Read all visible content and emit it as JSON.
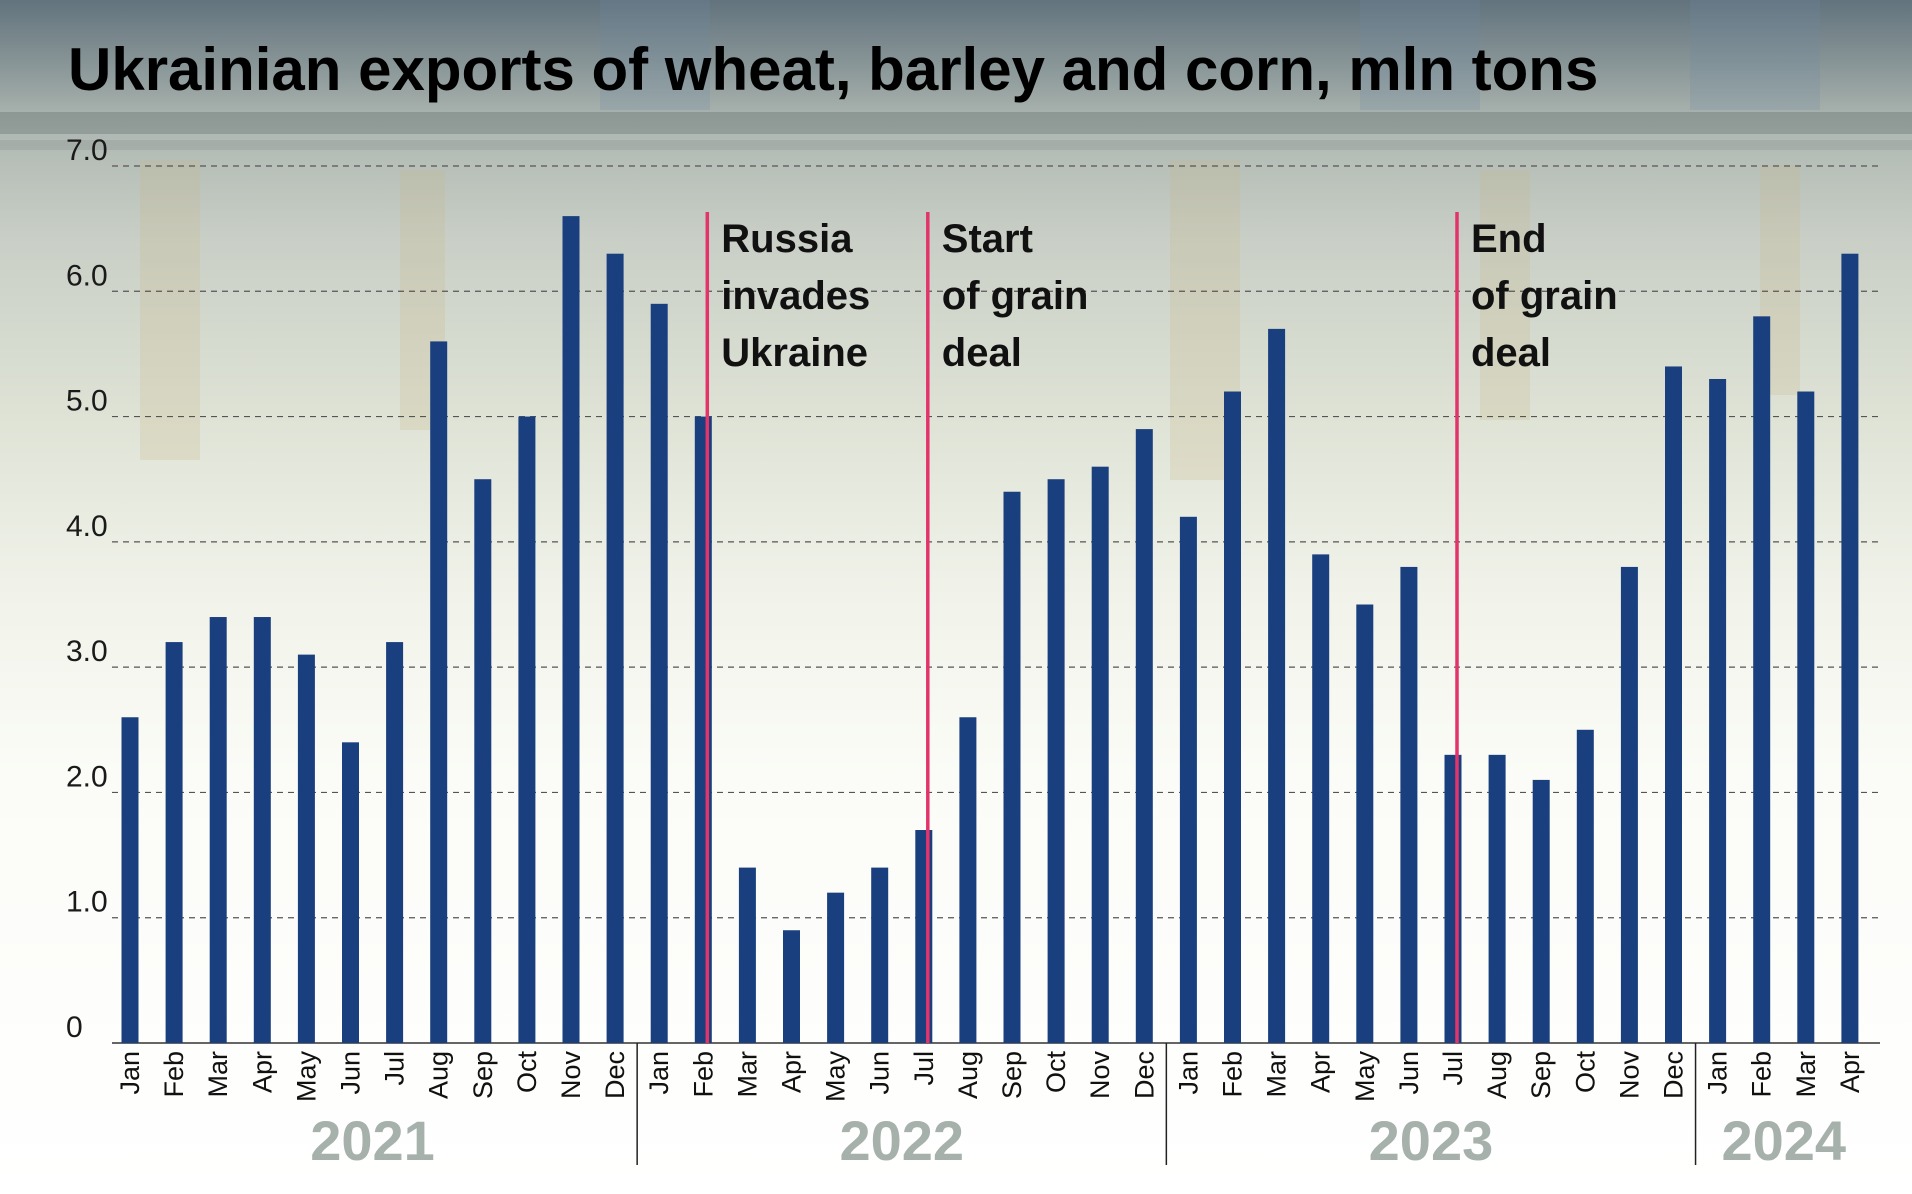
{
  "chart_data": {
    "type": "bar",
    "title": "Ukrainian exports of wheat, barley and corn, mln tons",
    "categories": [
      "Jan",
      "Feb",
      "Mar",
      "Apr",
      "May",
      "Jun",
      "Jul",
      "Aug",
      "Sep",
      "Oct",
      "Nov",
      "Dec",
      "Jan",
      "Feb",
      "Mar",
      "Apr",
      "May",
      "Jun",
      "Jul",
      "Aug",
      "Sep",
      "Oct",
      "Nov",
      "Dec",
      "Jan",
      "Feb",
      "Mar",
      "Apr",
      "May",
      "Jun",
      "Jul",
      "Aug",
      "Sep",
      "Oct",
      "Nov",
      "Dec",
      "Jan",
      "Feb",
      "Mar",
      "Apr"
    ],
    "values": [
      2.6,
      3.2,
      3.4,
      3.4,
      3.1,
      2.4,
      3.2,
      5.6,
      4.5,
      5.0,
      6.6,
      6.3,
      5.9,
      5.0,
      1.4,
      0.9,
      1.2,
      1.4,
      1.7,
      2.6,
      4.4,
      4.5,
      4.6,
      4.9,
      4.2,
      5.2,
      5.7,
      3.9,
      3.5,
      3.8,
      2.3,
      2.3,
      2.1,
      2.5,
      3.8,
      5.4,
      5.3,
      5.8,
      5.2,
      6.3
    ],
    "year_groups": [
      {
        "label": "2021",
        "start": 0,
        "count": 12
      },
      {
        "label": "2022",
        "start": 12,
        "count": 12
      },
      {
        "label": "2023",
        "start": 24,
        "count": 12
      },
      {
        "label": "2024",
        "start": 36,
        "count": 4
      }
    ],
    "yticks": [
      "0",
      "1.0",
      "2.0",
      "3.0",
      "4.0",
      "5.0",
      "6.0",
      "7.0"
    ],
    "ylim": [
      0,
      7
    ],
    "grid": true,
    "annotations": [
      {
        "at_index": 13,
        "lines": [
          "Russia",
          "invades",
          "Ukraine"
        ]
      },
      {
        "at_index": 18,
        "lines": [
          "Start",
          "of grain",
          "deal"
        ]
      },
      {
        "at_index": 30,
        "lines": [
          "End",
          "of grain",
          "deal"
        ]
      }
    ],
    "colors": {
      "bar": "#1a3f7e",
      "annotation_line": "#e3336b",
      "grid": "#555555",
      "year_label": "#a7b1ab"
    }
  }
}
